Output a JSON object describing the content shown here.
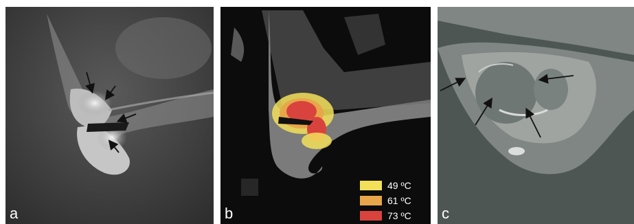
{
  "panels": [
    {
      "label": "a"
    },
    {
      "label": "b"
    },
    {
      "label": "c"
    }
  ],
  "legend": [
    {
      "label": "49 ºC",
      "color": "#f3e05a"
    },
    {
      "label": "61 ºC",
      "color": "#e8a64a"
    },
    {
      "label": "73 ºC",
      "color": "#d9433d"
    }
  ],
  "icons": [
    "arrow-icon"
  ]
}
